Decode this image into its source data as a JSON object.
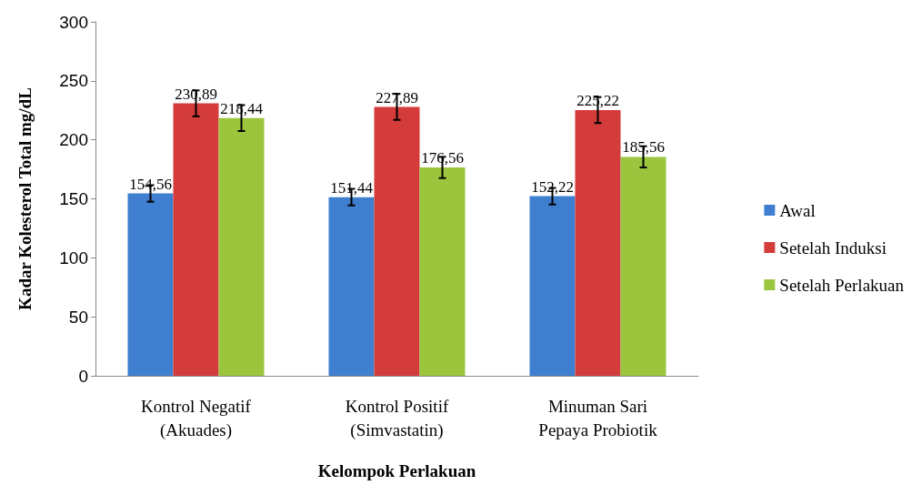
{
  "chart_data": {
    "type": "bar",
    "xlabel": "Kelompok Perlakuan",
    "ylabel": "Kadar Kolesterol Total mg/dL",
    "categories": [
      "Kontrol Negatif\n(Akuades)",
      "Kontrol Positif\n(Simvastatin)",
      "Minuman Sari\nPepaya Probiotik"
    ],
    "series": [
      {
        "name": "Awal",
        "color": "#3f7fcf",
        "values": [
          154.56,
          151.44,
          152.22
        ],
        "errors": [
          7,
          7,
          7
        ],
        "value_labels": [
          "154,56",
          "151,44",
          "152,22"
        ]
      },
      {
        "name": "Setelah Induksi",
        "color": "#d43b3b",
        "values": [
          230.89,
          227.89,
          225.22
        ],
        "errors": [
          11,
          11,
          11
        ],
        "value_labels": [
          "230,89",
          "227,89",
          "225,22"
        ]
      },
      {
        "name": "Setelah Perlakuan",
        "color": "#9bc53d",
        "values": [
          218.44,
          176.56,
          185.56
        ],
        "errors": [
          11,
          9,
          9
        ],
        "value_labels": [
          "218,44",
          "176,56",
          "185,56"
        ]
      }
    ],
    "ylim": [
      0,
      300
    ],
    "yticks": [
      0,
      50,
      100,
      150,
      200,
      250,
      300
    ],
    "grid": false,
    "legend": "right",
    "marker": "square"
  }
}
